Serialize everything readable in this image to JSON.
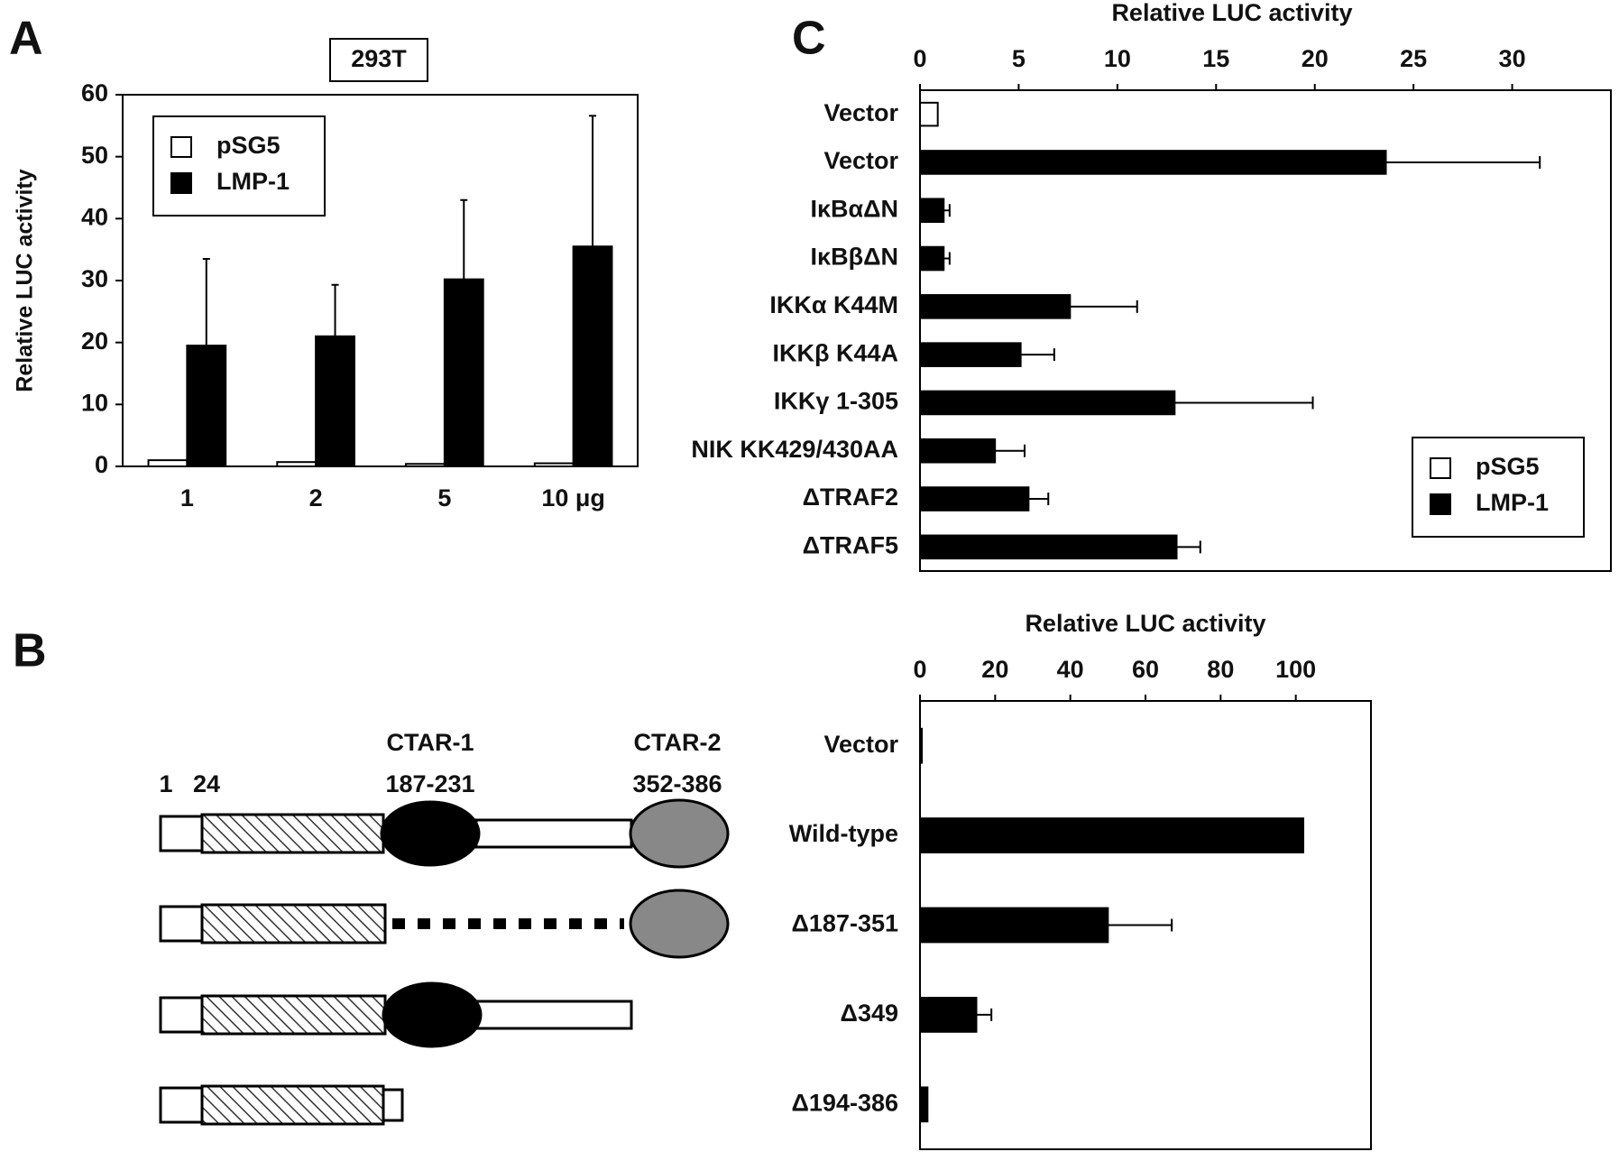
{
  "panel_labels": [
    "A",
    "B",
    "C"
  ],
  "diagram": {
    "labels": [
      "1",
      "24",
      "CTAR-1",
      "187-231",
      "CTAR-2",
      "352-386"
    ]
  },
  "chart_data": [
    {
      "type": "bar",
      "title": "293T",
      "ylabel": "Relative LUC activity",
      "categories": [
        "1",
        "2",
        "5",
        "10 μg"
      ],
      "ylim": [
        0,
        60
      ],
      "yticks": [
        0,
        10,
        20,
        30,
        40,
        50,
        60
      ],
      "legend": "upper left",
      "series": [
        {
          "name": "pSG5",
          "color": "#ffffff",
          "values": [
            1,
            0.7,
            0.4,
            0.5
          ]
        },
        {
          "name": "LMP-1",
          "color": "#000000",
          "values": [
            19.5,
            21,
            30.2,
            35.5
          ],
          "errors": [
            14,
            8.3,
            12.8,
            21.1
          ]
        }
      ]
    },
    {
      "type": "bar",
      "orientation": "horizontal",
      "xlabel": "Relative LUC activity",
      "categories": [
        "Vector",
        "Vector",
        "IκBαΔN",
        "IκBβΔN",
        "IKKα K44M",
        "IKKβ K44A",
        "IKKγ 1-305",
        "NIK KK429/430AA",
        "ΔTRAF2",
        "ΔTRAF5"
      ],
      "xlim": [
        0,
        35
      ],
      "xticks": [
        0,
        5,
        10,
        15,
        20,
        25,
        30
      ],
      "legend": "lower right",
      "series": [
        {
          "name": "pSG5",
          "color": "#ffffff",
          "values": [
            0.9,
            null,
            null,
            null,
            null,
            null,
            null,
            null,
            null,
            null
          ]
        },
        {
          "name": "LMP-1",
          "color": "#000000",
          "values": [
            null,
            23.6,
            1.2,
            1.2,
            7.6,
            5.1,
            12.9,
            3.8,
            5.5,
            13.0
          ],
          "errors": [
            null,
            7.8,
            0.3,
            0.3,
            3.4,
            1.7,
            7.0,
            1.5,
            1.0,
            1.2
          ]
        }
      ]
    },
    {
      "type": "bar",
      "orientation": "horizontal",
      "xlabel": "Relative LUC activity",
      "categories": [
        "Vector",
        "Wild-type",
        "Δ187-351",
        "Δ349",
        "Δ194-386"
      ],
      "xlim": [
        0,
        120
      ],
      "xticks": [
        0,
        20,
        40,
        60,
        80,
        100
      ],
      "series": [
        {
          "color": "#000000",
          "values": [
            0.5,
            102,
            50,
            15,
            2
          ],
          "errors": [
            null,
            null,
            17,
            4,
            null
          ]
        }
      ]
    }
  ]
}
